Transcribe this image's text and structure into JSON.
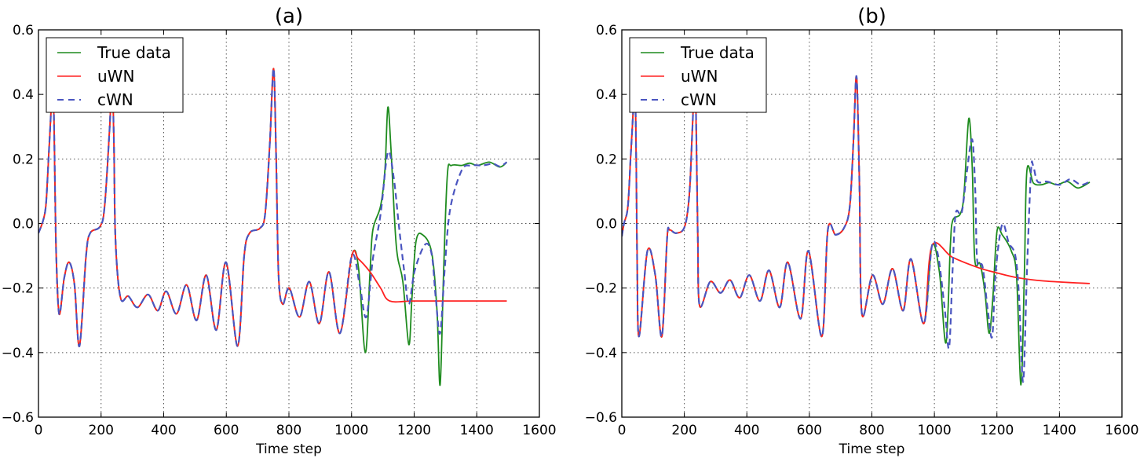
{
  "chart_data": [
    {
      "type": "line",
      "title": "(a)",
      "xlabel": "Time step",
      "ylabel": "",
      "xlim": [
        0,
        1600
      ],
      "ylim": [
        -0.6,
        0.6
      ],
      "xticks": [
        "0",
        "200",
        "400",
        "600",
        "800",
        "1000",
        "1200",
        "1400",
        "1600"
      ],
      "yticks": [
        "0.6",
        "0.4",
        "0.2",
        "0.0",
        "−0.2",
        "−0.4",
        "−0.6"
      ],
      "grid": true,
      "legend_position": "top-left",
      "legend": [
        "True data",
        "uWN",
        "cWN"
      ],
      "common_before_1000": [
        [
          0,
          -0.03
        ],
        [
          15,
          0.01
        ],
        [
          24,
          0.06
        ],
        [
          32,
          0.2
        ],
        [
          40,
          0.35
        ],
        [
          45,
          0.5
        ],
        [
          50,
          0.3
        ],
        [
          56,
          -0.07
        ],
        [
          66,
          -0.28
        ],
        [
          82,
          -0.17
        ],
        [
          98,
          -0.12
        ],
        [
          115,
          -0.19
        ],
        [
          131,
          -0.38
        ],
        [
          152,
          -0.1
        ],
        [
          165,
          -0.03
        ],
        [
          196,
          -0.01
        ],
        [
          211,
          0.05
        ],
        [
          227,
          0.29
        ],
        [
          235,
          0.45
        ],
        [
          241,
          0.25
        ],
        [
          246,
          -0.05
        ],
        [
          262,
          -0.23
        ],
        [
          287,
          -0.225
        ],
        [
          316,
          -0.26
        ],
        [
          350,
          -0.22
        ],
        [
          381,
          -0.27
        ],
        [
          408,
          -0.21
        ],
        [
          441,
          -0.28
        ],
        [
          473,
          -0.19
        ],
        [
          505,
          -0.3
        ],
        [
          536,
          -0.16
        ],
        [
          568,
          -0.33
        ],
        [
          599,
          -0.12
        ],
        [
          636,
          -0.38
        ],
        [
          657,
          -0.1
        ],
        [
          674,
          -0.03
        ],
        [
          707,
          -0.015
        ],
        [
          724,
          0.03
        ],
        [
          739,
          0.25
        ],
        [
          751,
          0.48
        ],
        [
          759,
          0.21
        ],
        [
          767,
          -0.16
        ],
        [
          780,
          -0.25
        ],
        [
          801,
          -0.2
        ],
        [
          834,
          -0.29
        ],
        [
          865,
          -0.18
        ],
        [
          897,
          -0.31
        ],
        [
          928,
          -0.15
        ],
        [
          963,
          -0.34
        ],
        [
          1001,
          -0.1
        ]
      ],
      "series": [
        {
          "name": "True data",
          "color": "#1f8c1f",
          "dash": false,
          "values_after_1000": [
            [
              1001,
              -0.1
            ],
            [
              1022,
              -0.135
            ],
            [
              1044,
              -0.4
            ],
            [
              1059,
              -0.15
            ],
            [
              1068,
              -0.02
            ],
            [
              1093,
              0.055
            ],
            [
              1107,
              0.17
            ],
            [
              1116,
              0.36
            ],
            [
              1126,
              0.23
            ],
            [
              1143,
              -0.07
            ],
            [
              1164,
              -0.18
            ],
            [
              1183,
              -0.375
            ],
            [
              1193,
              -0.23
            ],
            [
              1206,
              -0.055
            ],
            [
              1227,
              -0.035
            ],
            [
              1256,
              -0.09
            ],
            [
              1273,
              -0.27
            ],
            [
              1283,
              -0.5
            ],
            [
              1294,
              -0.15
            ],
            [
              1306,
              0.15
            ],
            [
              1319,
              0.18
            ],
            [
              1352,
              0.18
            ],
            [
              1377,
              0.187
            ],
            [
              1403,
              0.18
            ],
            [
              1440,
              0.19
            ],
            [
              1474,
              0.175
            ],
            [
              1496,
              0.19
            ]
          ]
        },
        {
          "name": "uWN",
          "color": "#ff2020",
          "dash": false,
          "values_after_1000": [
            [
              1001,
              -0.1
            ],
            [
              1022,
              -0.11
            ],
            [
              1059,
              -0.15
            ],
            [
              1093,
              -0.2
            ],
            [
              1122,
              -0.24
            ],
            [
              1200,
              -0.24
            ],
            [
              1350,
              -0.24
            ],
            [
              1496,
              -0.24
            ]
          ]
        },
        {
          "name": "cWN",
          "color": "#4a55c0",
          "dash": true,
          "values_after_1000": [
            [
              1001,
              -0.1
            ],
            [
              1026,
              -0.19
            ],
            [
              1047,
              -0.29
            ],
            [
              1068,
              -0.11
            ],
            [
              1093,
              0.03
            ],
            [
              1116,
              0.22
            ],
            [
              1135,
              0.14
            ],
            [
              1151,
              -0.005
            ],
            [
              1168,
              -0.145
            ],
            [
              1183,
              -0.25
            ],
            [
              1202,
              -0.145
            ],
            [
              1235,
              -0.065
            ],
            [
              1256,
              -0.095
            ],
            [
              1269,
              -0.23
            ],
            [
              1283,
              -0.34
            ],
            [
              1298,
              -0.135
            ],
            [
              1315,
              0.045
            ],
            [
              1352,
              0.165
            ],
            [
              1382,
              0.18
            ],
            [
              1419,
              0.18
            ],
            [
              1452,
              0.185
            ],
            [
              1474,
              0.177
            ],
            [
              1496,
              0.19
            ]
          ]
        }
      ]
    },
    {
      "type": "line",
      "title": "(b)",
      "xlabel": "Time step",
      "ylabel": "",
      "xlim": [
        0,
        1600
      ],
      "ylim": [
        -0.6,
        0.6
      ],
      "xticks": [
        "0",
        "200",
        "400",
        "600",
        "800",
        "1000",
        "1200",
        "1400",
        "1600"
      ],
      "yticks": [
        "0.6",
        "0.4",
        "0.2",
        "0.0",
        "−0.2",
        "−0.4",
        "−0.6"
      ],
      "grid": true,
      "legend_position": "top-left",
      "legend": [
        "True data",
        "uWN",
        "cWN"
      ],
      "common_before_1000": [
        [
          0,
          -0.04
        ],
        [
          7,
          0.0
        ],
        [
          19,
          0.05
        ],
        [
          28,
          0.2
        ],
        [
          36,
          0.34
        ],
        [
          42,
          0.45
        ],
        [
          46,
          0.2
        ],
        [
          49,
          -0.11
        ],
        [
          55,
          -0.35
        ],
        [
          82,
          -0.085
        ],
        [
          107,
          -0.16
        ],
        [
          128,
          -0.35
        ],
        [
          145,
          -0.045
        ],
        [
          153,
          -0.02
        ],
        [
          174,
          -0.03
        ],
        [
          201,
          -0.01
        ],
        [
          216,
          0.09
        ],
        [
          226,
          0.3
        ],
        [
          232,
          0.42
        ],
        [
          237,
          0.35
        ],
        [
          243,
          -0.03
        ],
        [
          249,
          -0.255
        ],
        [
          283,
          -0.18
        ],
        [
          316,
          -0.215
        ],
        [
          346,
          -0.175
        ],
        [
          377,
          -0.23
        ],
        [
          408,
          -0.16
        ],
        [
          442,
          -0.24
        ],
        [
          471,
          -0.145
        ],
        [
          505,
          -0.26
        ],
        [
          531,
          -0.12
        ],
        [
          572,
          -0.295
        ],
        [
          597,
          -0.085
        ],
        [
          640,
          -0.35
        ],
        [
          659,
          -0.02
        ],
        [
          684,
          -0.035
        ],
        [
          710,
          -0.015
        ],
        [
          729,
          0.05
        ],
        [
          741,
          0.255
        ],
        [
          751,
          0.455
        ],
        [
          760,
          0.13
        ],
        [
          768,
          -0.28
        ],
        [
          802,
          -0.16
        ],
        [
          835,
          -0.25
        ],
        [
          866,
          -0.14
        ],
        [
          900,
          -0.27
        ],
        [
          925,
          -0.11
        ],
        [
          966,
          -0.31
        ],
        [
          992,
          -0.07
        ]
      ],
      "series": [
        {
          "name": "True data",
          "color": "#1f8c1f",
          "dash": false,
          "values_after_1000": [
            [
              992,
              -0.07
            ],
            [
              1016,
              -0.15
            ],
            [
              1037,
              -0.37
            ],
            [
              1051,
              -0.07
            ],
            [
              1059,
              0.01
            ],
            [
              1083,
              0.03
            ],
            [
              1095,
              0.095
            ],
            [
              1110,
              0.325
            ],
            [
              1121,
              0.175
            ],
            [
              1129,
              -0.11
            ],
            [
              1146,
              -0.125
            ],
            [
              1162,
              -0.215
            ],
            [
              1175,
              -0.34
            ],
            [
              1187,
              -0.23
            ],
            [
              1200,
              -0.025
            ],
            [
              1217,
              -0.035
            ],
            [
              1246,
              -0.085
            ],
            [
              1263,
              -0.165
            ],
            [
              1277,
              -0.5
            ],
            [
              1288,
              -0.15
            ],
            [
              1296,
              0.165
            ],
            [
              1317,
              0.125
            ],
            [
              1342,
              0.12
            ],
            [
              1367,
              0.127
            ],
            [
              1393,
              0.12
            ],
            [
              1426,
              0.13
            ],
            [
              1459,
              0.11
            ],
            [
              1497,
              0.128
            ]
          ]
        },
        {
          "name": "uWN",
          "color": "#ff2020",
          "dash": false,
          "values_after_1000": [
            [
              992,
              -0.07
            ],
            [
              1058,
              -0.105
            ],
            [
              1141,
              -0.137
            ],
            [
              1200,
              -0.153
            ],
            [
              1266,
              -0.168
            ],
            [
              1350,
              -0.178
            ],
            [
              1497,
              -0.186
            ]
          ]
        },
        {
          "name": "cWN",
          "color": "#4a55c0",
          "dash": true,
          "values_after_1000": [
            [
              992,
              -0.07
            ],
            [
              1012,
              -0.1
            ],
            [
              1033,
              -0.265
            ],
            [
              1047,
              -0.385
            ],
            [
              1058,
              -0.15
            ],
            [
              1068,
              0.03
            ],
            [
              1087,
              0.033
            ],
            [
              1104,
              0.16
            ],
            [
              1121,
              0.26
            ],
            [
              1131,
              0.095
            ],
            [
              1137,
              -0.117
            ],
            [
              1154,
              -0.133
            ],
            [
              1171,
              -0.27
            ],
            [
              1185,
              -0.35
            ],
            [
              1196,
              -0.15
            ],
            [
              1217,
              -0.003
            ],
            [
              1238,
              -0.06
            ],
            [
              1259,
              -0.1
            ],
            [
              1271,
              -0.23
            ],
            [
              1284,
              -0.49
            ],
            [
              1296,
              -0.15
            ],
            [
              1309,
              0.16
            ],
            [
              1316,
              0.18
            ],
            [
              1330,
              0.13
            ],
            [
              1360,
              0.13
            ],
            [
              1401,
              0.12
            ],
            [
              1435,
              0.137
            ],
            [
              1469,
              0.12
            ],
            [
              1497,
              0.13
            ]
          ]
        }
      ]
    }
  ]
}
